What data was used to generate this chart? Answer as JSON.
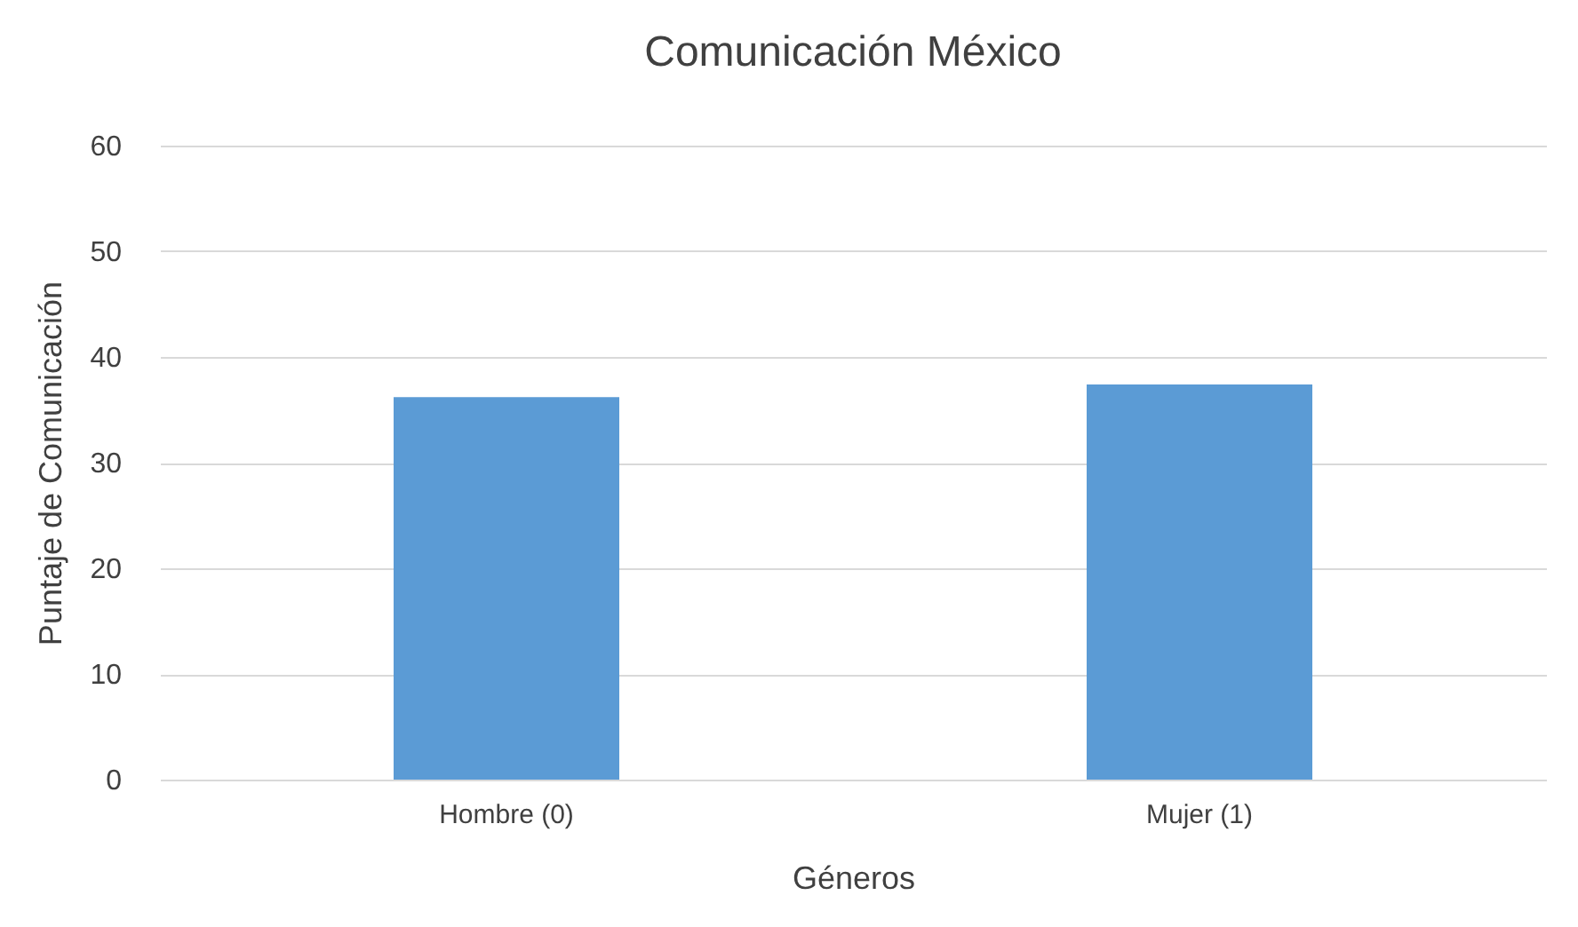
{
  "chart_data": {
    "type": "bar",
    "title": "Comunicación México",
    "xlabel": "Géneros",
    "ylabel": "Puntaje de Comunicación",
    "categories": [
      "Hombre (0)",
      "Mujer (1)"
    ],
    "values": [
      36.2,
      37.4
    ],
    "color": "#5b9bd5",
    "ylim": [
      0,
      60
    ],
    "yticks": [
      0,
      10,
      20,
      30,
      40,
      50,
      60
    ],
    "grid": "y"
  }
}
